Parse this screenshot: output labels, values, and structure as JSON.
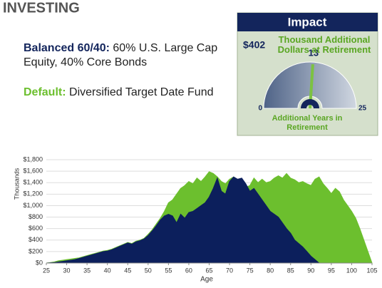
{
  "header": {
    "title": "INVESTING"
  },
  "options": [
    {
      "label": "Balanced 60/40:",
      "text": "60% U.S. Large Cap Equity, 40% Core Bonds"
    },
    {
      "label": "Default:",
      "text": "Diversified Target Date Fund"
    }
  ],
  "impact": {
    "title": "Impact",
    "amount": "$402",
    "amount_label": "Thousand Additional Dollars at Retirement",
    "gauge": {
      "min": 0,
      "max": 25,
      "value": 13
    },
    "gauge_label": "Additional Years in Retirement"
  },
  "chart_data": {
    "type": "area",
    "x_label": "Age",
    "y_label": "Thousands",
    "x": [
      25,
      26,
      27,
      28,
      29,
      30,
      31,
      32,
      33,
      34,
      35,
      36,
      37,
      38,
      39,
      40,
      41,
      42,
      43,
      44,
      45,
      46,
      47,
      48,
      49,
      50,
      51,
      52,
      53,
      54,
      55,
      56,
      57,
      58,
      59,
      60,
      61,
      62,
      63,
      64,
      65,
      66,
      67,
      68,
      69,
      70,
      71,
      72,
      73,
      74,
      75,
      76,
      77,
      78,
      79,
      80,
      81,
      82,
      83,
      84,
      85,
      86,
      87,
      88,
      89,
      90,
      91,
      92,
      93,
      94,
      95,
      96,
      97,
      98,
      99,
      100,
      101,
      102,
      103,
      104,
      105
    ],
    "series": [
      {
        "color": "#6cbf2e",
        "values": [
          0,
          10,
          20,
          40,
          50,
          60,
          70,
          80,
          90,
          110,
          130,
          150,
          170,
          190,
          210,
          220,
          240,
          270,
          300,
          330,
          360,
          340,
          380,
          400,
          430,
          500,
          580,
          680,
          780,
          900,
          1050,
          1100,
          1200,
          1300,
          1350,
          1420,
          1380,
          1480,
          1420,
          1500,
          1590,
          1560,
          1500,
          1420,
          1380,
          1460,
          1500,
          1450,
          1380,
          1320,
          1350,
          1480,
          1400,
          1460,
          1400,
          1420,
          1480,
          1520,
          1480,
          1560,
          1480,
          1450,
          1400,
          1420,
          1380,
          1350,
          1460,
          1500,
          1380,
          1300,
          1210,
          1300,
          1240,
          1100,
          1000,
          900,
          780,
          600,
          400,
          200,
          0
        ]
      },
      {
        "color": "#0c1f5c",
        "values": [
          0,
          5,
          10,
          20,
          30,
          40,
          50,
          60,
          80,
          100,
          120,
          140,
          160,
          180,
          200,
          210,
          230,
          260,
          290,
          320,
          350,
          330,
          370,
          390,
          420,
          480,
          560,
          650,
          750,
          820,
          850,
          820,
          700,
          850,
          780,
          880,
          900,
          950,
          1000,
          1050,
          1150,
          1300,
          1480,
          1250,
          1200,
          1420,
          1500,
          1460,
          1480,
          1380,
          1250,
          1300,
          1200,
          1100,
          1000,
          900,
          850,
          800,
          700,
          600,
          520,
          400,
          340,
          280,
          200,
          120,
          60,
          0,
          null,
          null,
          null,
          null,
          null,
          null,
          null,
          null,
          null,
          null,
          null,
          null,
          null
        ]
      }
    ],
    "xlim": [
      25,
      105
    ],
    "xticks": [
      25,
      30,
      35,
      40,
      45,
      50,
      55,
      60,
      65,
      70,
      75,
      80,
      85,
      90,
      95,
      100,
      105
    ],
    "ylim": [
      0,
      1800
    ],
    "yticks": [
      {
        "value": 0,
        "label": "$0"
      },
      {
        "value": 200,
        "label": "$200"
      },
      {
        "value": 400,
        "label": "$400"
      },
      {
        "value": 600,
        "label": "$600"
      },
      {
        "value": 800,
        "label": "$800"
      },
      {
        "value": 1000,
        "label": "$1,000"
      },
      {
        "value": 1200,
        "label": "$1,200"
      },
      {
        "value": 1400,
        "label": "$1,400"
      },
      {
        "value": 1600,
        "label": "$1,600"
      },
      {
        "value": 1800,
        "label": "$1,800"
      }
    ],
    "grid": true
  }
}
